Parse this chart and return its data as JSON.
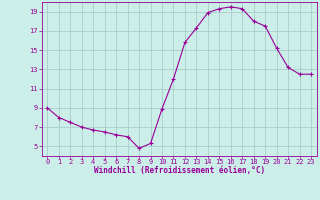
{
  "x": [
    0,
    1,
    2,
    3,
    4,
    5,
    6,
    7,
    8,
    9,
    10,
    11,
    12,
    13,
    14,
    15,
    16,
    17,
    18,
    19,
    20,
    21,
    22,
    23
  ],
  "y": [
    9.0,
    8.0,
    7.5,
    7.0,
    6.7,
    6.5,
    6.2,
    6.0,
    4.8,
    5.3,
    8.9,
    12.0,
    15.8,
    17.3,
    18.9,
    19.3,
    19.5,
    19.3,
    18.0,
    17.5,
    15.2,
    13.2,
    12.5,
    12.5
  ],
  "line_color": "#990099",
  "marker": "+",
  "marker_size": 3,
  "marker_linewidth": 0.8,
  "background_color": "#cceee8",
  "grid_color": "#aacccc",
  "xlabel": "Windchill (Refroidissement éolien,°C)",
  "xlabel_color": "#990099",
  "tick_color": "#990099",
  "spine_color": "#990099",
  "ylim": [
    4,
    20
  ],
  "xlim": [
    -0.5,
    23.5
  ],
  "yticks": [
    5,
    7,
    9,
    11,
    13,
    15,
    17,
    19
  ],
  "xticks": [
    0,
    1,
    2,
    3,
    4,
    5,
    6,
    7,
    8,
    9,
    10,
    11,
    12,
    13,
    14,
    15,
    16,
    17,
    18,
    19,
    20,
    21,
    22,
    23
  ],
  "tick_fontsize": 5,
  "xlabel_fontsize": 5.5,
  "linewidth": 0.8
}
